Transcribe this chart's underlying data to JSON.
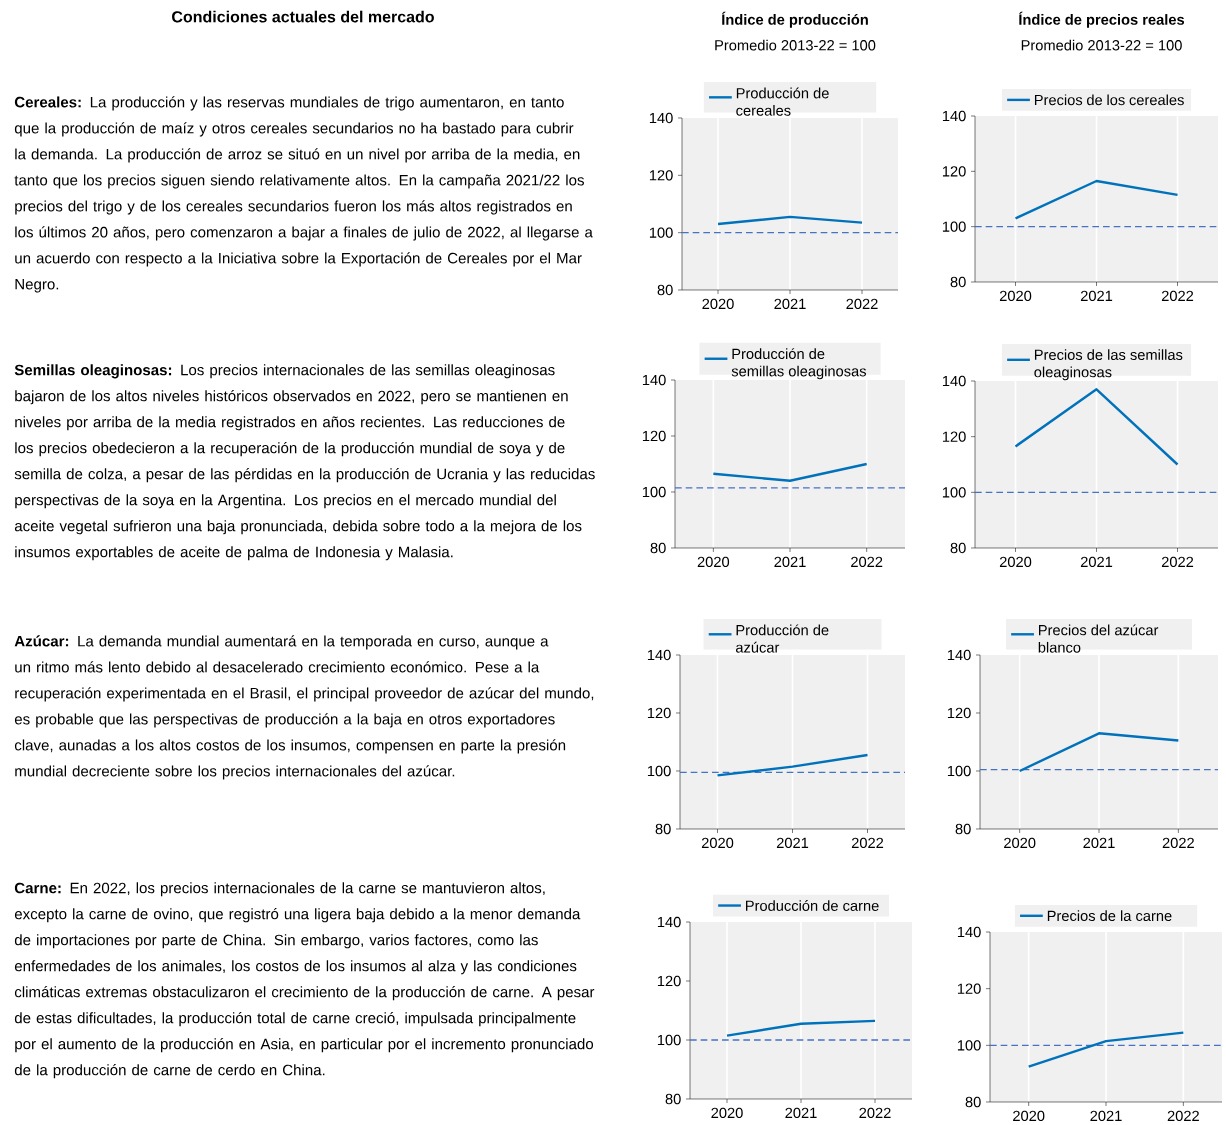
{
  "chart_data": [
    {
      "type": "other",
      "title": "Condiciones actuales del mercado",
      "annotations": [
        "**Cereales:** La producción y las reservas mundiales de trigo aumentaron, en tanto que la producción de maíz y otros cereales secundarios no ha bastado para cubrir la demanda. La producción de arroz se situó en un nivel por arriba de la media, en tanto que los precios siguen siendo relativamente altos. En la campaña 2021/22 los precios del trigo y de los cereales secundarios fueron los más altos registrados en los últimos 20 años, pero comenzaron a bajar a finales de julio de 2022, al llegarse a un acuerdo con respecto a la Iniciativa sobre la Exportación de Cereales por el Mar Negro.",
        "**Semillas oleaginosas:** Los precios internacionales de las semillas oleaginosas bajaron de los altos niveles históricos observados en 2022, pero se mantienen en niveles por arriba de la media registrados en años recientes. Las reducciones de los precios obedecieron a la recuperación de la producción mundial de soya y de semilla de colza, a pesar de las pérdidas en la producción de Ucrania y las reducidas perspectivas de la soya en la Argentina. Los precios en el mercado mundial del aceite vegetal sufrieron una baja pronunciada, debida sobre todo a la mejora de los insumos exportables de aceite de palma de Indonesia y Malasia.",
        "**Azúcar:** La demanda mundial aumentará en la temporada en curso, aunque a un ritmo más lento debido al desacelerado crecimiento económico. Pese a la recuperación experimentada en el Brasil, el principal proveedor de azúcar del mundo, es probable que las perspectivas de producción a la baja en otros exportadores clave, aunadas a los altos costos de los insumos, compensen en parte la presión mundial decreciente sobre los precios internacionales del azúcar.",
        "**Carne:** En 2022, los precios internacionales de la carne se mantuvieron altos, excepto la carne de ovino, que registró una ligera baja debido a la menor demanda de importaciones por parte de China. Sin embargo, varios factores, como las enfermedades de los animales, los costos de los insumos al alza y las condiciones climáticas extremas obstaculizaron el crecimiento de la producción de carne. A pesar de estas dificultades, la producción total de carne creció, impulsada principalmente por el aumento de la producción en Asia, en particular por el incremento pronunciado de la producción de carne de cerdo en China."
      ]
    },
    {
      "type": "line",
      "title": "Índice de producción",
      "subtitle": "Promedio 2013-22 = 100",
      "categories": [
        "2020",
        "2021",
        "2022"
      ],
      "series": [
        {
          "name": "Producción de cereales",
          "color": "#0072bc",
          "values": [
            103,
            105.5,
            103.5
          ]
        }
      ],
      "ylim": [
        80,
        140
      ],
      "yticks": [
        80,
        100,
        120,
        140
      ],
      "grid": "x",
      "legend": "top",
      "marker": "none",
      "ref_lines": [
        {
          "axis": "y",
          "value": 100,
          "color": "#4472c4",
          "line_style": "dashed"
        }
      ]
    },
    {
      "type": "line",
      "title": "Índice de precios reales",
      "subtitle": "Promedio 2013-22 = 100",
      "categories": [
        "2020",
        "2021",
        "2022"
      ],
      "series": [
        {
          "name": "Precios de los cereales",
          "color": "#0072bc",
          "values": [
            103,
            116.5,
            111.5
          ]
        }
      ],
      "ylim": [
        80,
        140
      ],
      "yticks": [
        80,
        100,
        120,
        140
      ],
      "grid": "x",
      "legend": "top",
      "marker": "none",
      "ref_lines": [
        {
          "axis": "y",
          "value": 100,
          "color": "#4472c4",
          "line_style": "dashed"
        }
      ]
    },
    {
      "type": "line",
      "categories": [
        "2020",
        "2021",
        "2022"
      ],
      "series": [
        {
          "name": "Producción de semillas oleaginosas",
          "color": "#0072bc",
          "values": [
            106.5,
            104,
            110
          ]
        }
      ],
      "ylim": [
        80,
        140
      ],
      "yticks": [
        80,
        100,
        120,
        140
      ],
      "grid": "x",
      "legend": "top",
      "marker": "none",
      "ref_lines": [
        {
          "axis": "y",
          "value": 101.5,
          "color": "#4472c4",
          "line_style": "dashed"
        }
      ]
    },
    {
      "type": "line",
      "categories": [
        "2020",
        "2021",
        "2022"
      ],
      "series": [
        {
          "name": "Precios de las semillas oleaginosas",
          "color": "#0072bc",
          "values": [
            116.5,
            137,
            110
          ]
        }
      ],
      "ylim": [
        80,
        140
      ],
      "yticks": [
        80,
        100,
        120,
        140
      ],
      "grid": "x",
      "legend": "top",
      "marker": "none",
      "ref_lines": [
        {
          "axis": "y",
          "value": 100,
          "color": "#4472c4",
          "line_style": "dashed"
        }
      ]
    },
    {
      "type": "line",
      "categories": [
        "2020",
        "2021",
        "2022"
      ],
      "series": [
        {
          "name": "Producción de azúcar",
          "color": "#0072bc",
          "values": [
            98.5,
            101.5,
            105.5
          ]
        }
      ],
      "ylim": [
        80,
        140
      ],
      "yticks": [
        80,
        100,
        120,
        140
      ],
      "grid": "x",
      "legend": "top",
      "marker": "none",
      "ref_lines": [
        {
          "axis": "y",
          "value": 99.5,
          "color": "#4472c4",
          "line_style": "dashed"
        }
      ]
    },
    {
      "type": "line",
      "categories": [
        "2020",
        "2021",
        "2022"
      ],
      "series": [
        {
          "name": "Precios del azúcar blanco",
          "color": "#0072bc",
          "values": [
            100,
            113,
            110.5
          ]
        }
      ],
      "ylim": [
        80,
        140
      ],
      "yticks": [
        80,
        100,
        120,
        140
      ],
      "grid": "x",
      "legend": "top",
      "marker": "none",
      "ref_lines": [
        {
          "axis": "y",
          "value": 100.5,
          "color": "#4472c4",
          "line_style": "dashed"
        }
      ]
    },
    {
      "type": "line",
      "categories": [
        "2020",
        "2021",
        "2022"
      ],
      "series": [
        {
          "name": "Producción de carne",
          "color": "#0072bc",
          "values": [
            101.5,
            105.5,
            106.5
          ]
        }
      ],
      "ylim": [
        80,
        140
      ],
      "yticks": [
        80,
        100,
        120,
        140
      ],
      "grid": "x",
      "legend": "top",
      "marker": "none",
      "ref_lines": [
        {
          "axis": "y",
          "value": 100,
          "color": "#4472c4",
          "line_style": "dashed"
        }
      ]
    },
    {
      "type": "line",
      "categories": [
        "2020",
        "2021",
        "2022"
      ],
      "series": [
        {
          "name": "Precios de la carne",
          "color": "#0072bc",
          "values": [
            92.5,
            101.5,
            104.5
          ]
        }
      ],
      "ylim": [
        80,
        140
      ],
      "yticks": [
        80,
        100,
        120,
        140
      ],
      "grid": "x",
      "legend": "top",
      "marker": "none",
      "ref_lines": [
        {
          "axis": "y",
          "value": 100,
          "color": "#4472c4",
          "line_style": "dashed"
        }
      ]
    }
  ]
}
